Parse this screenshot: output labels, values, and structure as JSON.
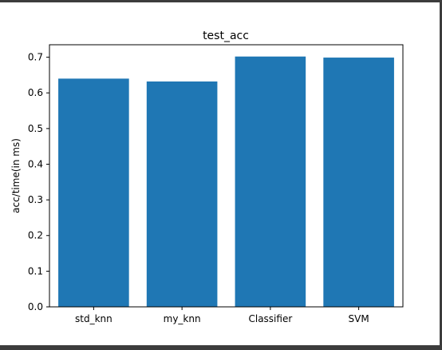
{
  "chart_data": {
    "type": "bar",
    "title": "test_acc",
    "xlabel": "",
    "ylabel": "acc/time(in ms)",
    "categories": [
      "std_knn",
      "my_knn",
      "Classifier",
      "SVM"
    ],
    "values": [
      0.64,
      0.632,
      0.702,
      0.699
    ],
    "ylim": [
      0,
      0.735
    ],
    "yticks": [
      "0.0",
      "0.1",
      "0.2",
      "0.3",
      "0.4",
      "0.5",
      "0.6",
      "0.7"
    ],
    "bar_color": "#1f77b4",
    "grid": false
  }
}
